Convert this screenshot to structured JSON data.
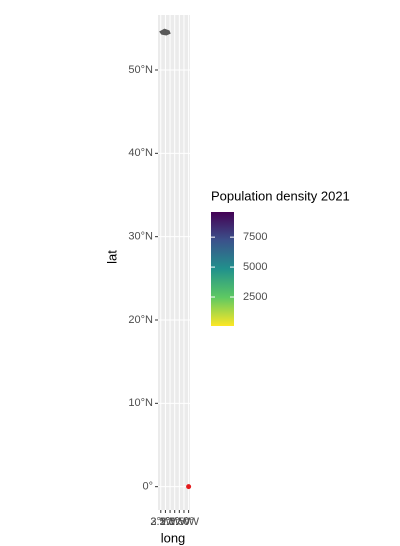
{
  "chart_data": {
    "type": "map",
    "x_label": "long",
    "y_label": "lat",
    "xlim": [
      -3.3,
      0.15
    ],
    "ylim": [
      -2.8,
      56.6
    ],
    "xticks": [
      {
        "value": -3,
        "label": "3°W"
      },
      {
        "value": -2.5,
        "label": "2.5°W"
      },
      {
        "value": -2,
        "label": "2°W"
      },
      {
        "value": -1.5,
        "label": "1.5°W"
      },
      {
        "value": -1,
        "label": "1°W"
      },
      {
        "value": -0.5,
        "label": "0.5°W"
      },
      {
        "value": 0,
        "label": "0°"
      }
    ],
    "yticks": [
      {
        "value": 0,
        "label": "0°"
      },
      {
        "value": 10,
        "label": "10°N"
      },
      {
        "value": 20,
        "label": "20°N"
      },
      {
        "value": 30,
        "label": "30°N"
      },
      {
        "value": 40,
        "label": "40°N"
      },
      {
        "value": 50,
        "label": "50°N"
      }
    ],
    "grid": true,
    "shapes": [
      {
        "color": "#595959",
        "x": [
          -3.1,
          -2.6,
          -2.1,
          -2.0,
          -2.4,
          -2.9,
          -3.1
        ],
        "values": [
          54.6,
          54.9,
          54.7,
          54.4,
          54.2,
          54.3,
          54.6
        ]
      }
    ],
    "points": {
      "color": "#e41a1c",
      "x": [
        0
      ],
      "values": [
        0
      ]
    },
    "legend": {
      "title": "Population density 2021",
      "lim": [
        80,
        9600
      ],
      "ticks": [
        2500,
        5000,
        7500
      ],
      "colors": [
        "#fde725",
        "#5ec962",
        "#21918c",
        "#3b528b",
        "#440154"
      ]
    }
  }
}
